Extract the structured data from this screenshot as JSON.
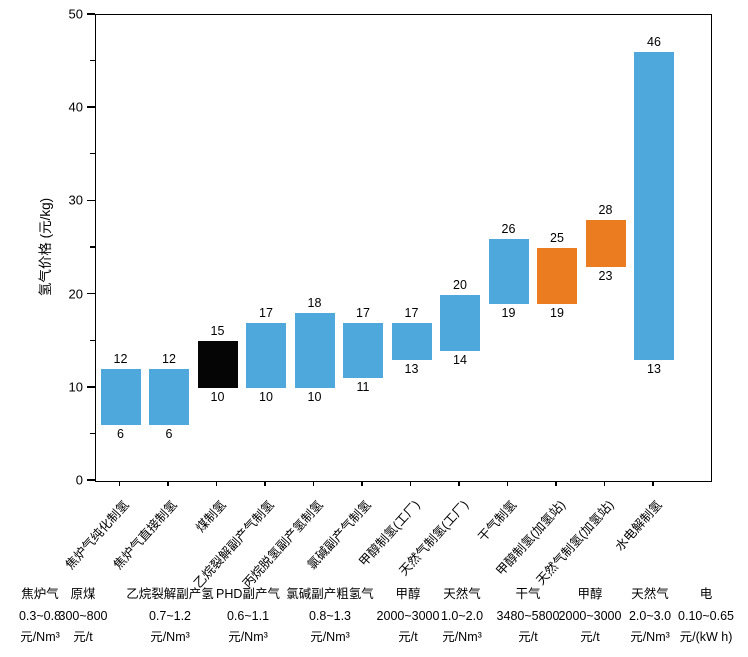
{
  "chart_data": {
    "type": "bar",
    "subtype": "floating-range-bar",
    "title": "",
    "xlabel": "",
    "ylabel": "氢气价格 (元/kg)",
    "ylim": [
      0,
      50
    ],
    "yticks": [
      0,
      10,
      20,
      30,
      40,
      50
    ],
    "grid": false,
    "legend": "none",
    "categories": [
      "焦炉气纯化制氢",
      "焦炉气直接制氢",
      "煤制氢",
      "乙烷裂解副产气制氢",
      "丙烷脱氢副产氢制氢",
      "氯碱副产气制氢",
      "甲醇制氢(工厂)",
      "天然气制氢(工厂)",
      "干气制氢",
      "甲醇制氢(加氢站)",
      "天然气制氢(加氢站)",
      "水电解制氢"
    ],
    "bars": [
      {
        "category": "焦炉气纯化制氢",
        "min": 6,
        "max": 12,
        "color": "blue"
      },
      {
        "category": "焦炉气直接制氢",
        "min": 6,
        "max": 12,
        "color": "blue"
      },
      {
        "category": "煤制氢",
        "min": 10,
        "max": 15,
        "color": "black"
      },
      {
        "category": "乙烷裂解副产气制氢",
        "min": 10,
        "max": 17,
        "color": "blue"
      },
      {
        "category": "丙烷脱氢副产氢制氢",
        "min": 10,
        "max": 18,
        "color": "blue"
      },
      {
        "category": "氯碱副产气制氢",
        "min": 11,
        "max": 17,
        "color": "blue"
      },
      {
        "category": "甲醇制氢(工厂)",
        "min": 13,
        "max": 17,
        "color": "blue"
      },
      {
        "category": "天然气制氢(工厂)",
        "min": 14,
        "max": 20,
        "color": "blue"
      },
      {
        "category": "干气制氢",
        "min": 19,
        "max": 26,
        "color": "blue"
      },
      {
        "category": "甲醇制氢(加氢站)",
        "min": 19,
        "max": 25,
        "color": "orange"
      },
      {
        "category": "天然气制氢(加氢站)",
        "min": 23,
        "max": 28,
        "color": "orange"
      },
      {
        "category": "水电解制氢",
        "min": 13,
        "max": 46,
        "color": "blue"
      }
    ],
    "colors": {
      "blue": "#4FA8DC",
      "orange": "#EB7D20",
      "black": "#050505"
    },
    "footnotes": [
      {
        "name": "焦炉气",
        "range": "0.3~0.8",
        "unit": "元/Nm³"
      },
      {
        "name": "原煤",
        "range": "300~800",
        "unit": "元/t"
      },
      {
        "name": "乙烷裂解副产氢",
        "range": "0.7~1.2",
        "unit": "元/Nm³"
      },
      {
        "name": "PHD副产气",
        "range": "0.6~1.1",
        "unit": "元/Nm³"
      },
      {
        "name": "氯碱副产粗氢气",
        "range": "0.8~1.3",
        "unit": "元/Nm³"
      },
      {
        "name": "甲醇",
        "range": "2000~3000",
        "unit": "元/t"
      },
      {
        "name": "天然气",
        "range": "1.0~2.0",
        "unit": "元/Nm³"
      },
      {
        "name": "干气",
        "range": "3480~5800",
        "unit": "元/t"
      },
      {
        "name": "甲醇",
        "range": "2000~3000",
        "unit": "元/t"
      },
      {
        "name": "天然气",
        "range": "2.0~3.0",
        "unit": "元/Nm³"
      },
      {
        "name": "电",
        "range": "0.10~0.65",
        "unit": "元/(kW h)"
      }
    ]
  }
}
